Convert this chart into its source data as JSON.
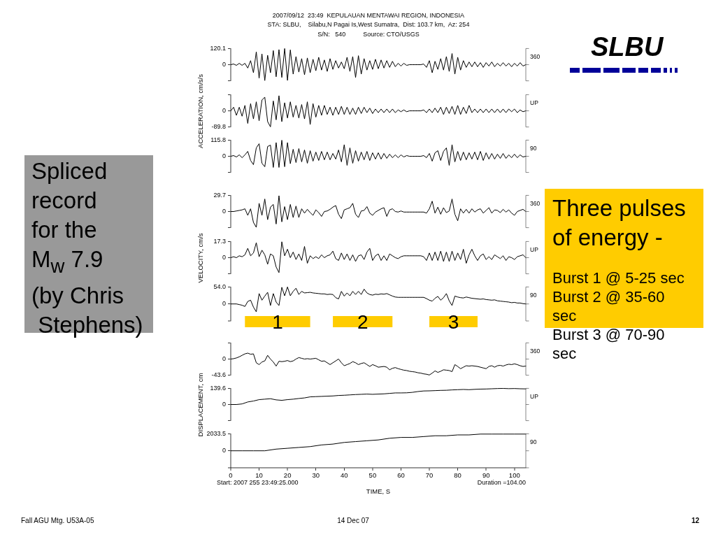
{
  "chart_data": [
    {
      "type": "line",
      "title": "2007/09/12  23:49  KEPULAUAN MENTAWAI REGION, INDONESIA",
      "subtitle": "STA: SLBU,    Silabu,N Pagai Is,West Sumatra,  Dist: 103.7 km,  Az: 254\nS/N:   540          Source: CTO/USGS",
      "x": [
        0,
        1,
        2,
        3,
        4,
        5,
        6,
        7,
        8,
        9,
        10,
        11,
        12,
        13,
        14,
        15,
        16,
        17,
        18,
        19,
        20,
        21,
        22,
        23,
        24,
        25,
        26,
        27,
        28,
        29,
        30,
        31,
        32,
        33,
        34,
        35,
        36,
        37,
        38,
        39,
        40,
        41,
        42,
        43,
        44,
        45,
        46,
        47,
        48,
        49,
        50,
        51,
        52,
        53,
        54,
        55,
        56,
        57,
        58,
        59,
        60,
        61,
        62,
        63,
        64,
        65,
        66,
        67,
        68,
        69,
        70,
        71,
        72,
        73,
        74,
        75,
        76,
        77,
        78,
        79,
        80,
        81,
        82,
        83,
        84,
        85,
        86,
        87,
        88,
        89,
        90,
        91,
        92,
        93,
        94,
        95,
        96,
        97,
        98,
        99,
        100,
        101,
        102,
        103,
        104
      ],
      "series": [
        {
          "name": "360",
          "color": "#000000",
          "values": [
            0,
            5,
            -5,
            10,
            -5,
            10,
            -25,
            30,
            -60,
            95,
            -100,
            80,
            -118,
            70,
            -60,
            105,
            -90,
            112,
            -95,
            120,
            -117,
            110,
            -70,
            60,
            -55,
            45,
            -75,
            50,
            -60,
            40,
            -45,
            55,
            -40,
            35,
            -50,
            45,
            -35,
            30,
            -25,
            20,
            -30,
            55,
            -50,
            60,
            -95,
            67,
            -70,
            45,
            -40,
            30,
            -35,
            40,
            -30,
            35,
            -25,
            30,
            -20,
            25,
            -15,
            10,
            -10,
            10,
            -5,
            0,
            0,
            0,
            0,
            0,
            5,
            -20,
            30,
            -60,
            25,
            -35,
            45,
            -40,
            60,
            -50,
            83,
            -70,
            55,
            -40,
            30,
            -20,
            20,
            -15,
            20,
            -15,
            15,
            -20,
            15,
            -10,
            20,
            -15,
            10,
            -10,
            15,
            -10,
            10,
            -15,
            10,
            -10,
            15,
            -10,
            0
          ]
        }
      ],
      "xlim": [
        0,
        104
      ],
      "ylim": [
        -120.1,
        120.1
      ],
      "yticks": [
        {
          "value": -120.1,
          "label": null
        },
        0,
        120.1
      ],
      "tick_labels": "y"
    },
    {
      "type": "line",
      "ylabel": "ACCELERATION, cm/s/s",
      "x": [
        0,
        1,
        2,
        3,
        4,
        5,
        6,
        7,
        8,
        9,
        10,
        11,
        12,
        13,
        14,
        15,
        16,
        17,
        18,
        19,
        20,
        21,
        22,
        23,
        24,
        25,
        26,
        27,
        28,
        29,
        30,
        31,
        32,
        33,
        34,
        35,
        36,
        37,
        38,
        39,
        40,
        41,
        42,
        43,
        44,
        45,
        46,
        47,
        48,
        49,
        50,
        51,
        52,
        53,
        54,
        55,
        56,
        57,
        58,
        59,
        60,
        61,
        62,
        63,
        64,
        65,
        66,
        67,
        68,
        69,
        70,
        71,
        72,
        73,
        74,
        75,
        76,
        77,
        78,
        79,
        80,
        81,
        82,
        83,
        84,
        85,
        86,
        87,
        88,
        89,
        90,
        91,
        92,
        93,
        94,
        95,
        96,
        97,
        98,
        99,
        100,
        101,
        102,
        103,
        104
      ],
      "series": [
        {
          "name": "UP",
          "color": "#000000",
          "values": [
            0,
            20,
            -25,
            20,
            -30,
            30,
            -70,
            40,
            -45,
            50,
            -55,
            60,
            76,
            -60,
            -89,
            55,
            -50,
            84,
            -60,
            45,
            -40,
            50,
            -35,
            30,
            -40,
            35,
            -45,
            50,
            -76,
            40,
            -35,
            30,
            -25,
            30,
            -20,
            20,
            -25,
            20,
            -20,
            25,
            -20,
            20,
            -20,
            15,
            -20,
            20,
            -15,
            20,
            -10,
            15,
            -15,
            10,
            -10,
            10,
            -10,
            10,
            -10,
            10,
            -10,
            5,
            -5,
            5,
            -5,
            0,
            0,
            0,
            0,
            0,
            5,
            -10,
            10,
            -10,
            15,
            -10,
            20,
            -20,
            20,
            -15,
            25,
            -20,
            30,
            -20,
            20,
            -15,
            30,
            -10,
            10,
            -10,
            10,
            -10,
            10,
            -10,
            10,
            -10,
            10,
            -10,
            10,
            -10,
            10,
            -5,
            10,
            -10,
            5,
            -5,
            0
          ]
        }
      ],
      "xlim": [
        0,
        104
      ],
      "ylim": [
        -89.8,
        89.8
      ],
      "yticks": [
        -89.8,
        0,
        {
          "value": 89.8,
          "label": null
        }
      ],
      "tick_labels": "y"
    },
    {
      "type": "line",
      "x": [
        0,
        1,
        2,
        3,
        4,
        5,
        6,
        7,
        8,
        9,
        10,
        11,
        12,
        13,
        14,
        15,
        16,
        17,
        18,
        19,
        20,
        21,
        22,
        23,
        24,
        25,
        26,
        27,
        28,
        29,
        30,
        31,
        32,
        33,
        34,
        35,
        36,
        37,
        38,
        39,
        40,
        41,
        42,
        43,
        44,
        45,
        46,
        47,
        48,
        49,
        50,
        51,
        52,
        53,
        54,
        55,
        56,
        57,
        58,
        59,
        60,
        61,
        62,
        63,
        64,
        65,
        66,
        67,
        68,
        69,
        70,
        71,
        72,
        73,
        74,
        75,
        76,
        77,
        78,
        79,
        80,
        81,
        82,
        83,
        84,
        85,
        86,
        87,
        88,
        89,
        90,
        91,
        92,
        93,
        94,
        95,
        96,
        97,
        98,
        99,
        100,
        101,
        102,
        103,
        104
      ],
      "series": [
        {
          "name": "90",
          "color": "#000000",
          "values": [
            0,
            5,
            -5,
            10,
            -10,
            10,
            35,
            -30,
            -60,
            60,
            90,
            -50,
            -75,
            70,
            80,
            -80,
            98,
            -80,
            115,
            -75,
            98,
            -53,
            50,
            -45,
            55,
            -40,
            45,
            -50,
            40,
            -35,
            30,
            -30,
            35,
            -25,
            30,
            -25,
            20,
            -20,
            45,
            -40,
            83,
            -65,
            60,
            -50,
            40,
            -35,
            30,
            -25,
            35,
            -30,
            25,
            -20,
            25,
            -20,
            20,
            -15,
            15,
            -10,
            10,
            -10,
            10,
            -5,
            5,
            0,
            0,
            0,
            0,
            0,
            5,
            -10,
            20,
            -35,
            25,
            40,
            -30,
            35,
            60,
            -65,
            83,
            -40,
            35,
            -30,
            30,
            -25,
            25,
            -20,
            30,
            -25,
            35,
            -30,
            25,
            -20,
            20,
            -20,
            15,
            -15,
            20,
            -15,
            10,
            -10,
            15,
            -10,
            10,
            -5,
            0
          ]
        }
      ],
      "xlim": [
        0,
        104
      ],
      "ylim": [
        -115.8,
        115.8
      ],
      "yticks": [
        {
          "value": -115.8,
          "label": null
        },
        0,
        115.8
      ],
      "tick_labels": "y"
    },
    {
      "type": "line",
      "x": [
        0,
        1,
        2,
        3,
        4,
        5,
        6,
        7,
        8,
        9,
        10,
        11,
        12,
        13,
        14,
        15,
        16,
        17,
        18,
        19,
        20,
        21,
        22,
        23,
        24,
        25,
        26,
        27,
        28,
        29,
        30,
        31,
        32,
        33,
        34,
        35,
        36,
        37,
        38,
        39,
        40,
        41,
        42,
        43,
        44,
        45,
        46,
        47,
        48,
        49,
        50,
        51,
        52,
        53,
        54,
        55,
        56,
        57,
        58,
        59,
        60,
        61,
        62,
        63,
        64,
        65,
        66,
        67,
        68,
        69,
        70,
        71,
        72,
        73,
        74,
        75,
        76,
        77,
        78,
        79,
        80,
        81,
        82,
        83,
        84,
        85,
        86,
        87,
        88,
        89,
        90,
        91,
        92,
        93,
        94,
        95,
        96,
        97,
        98,
        99,
        100,
        101,
        102,
        103,
        104
      ],
      "series": [
        {
          "name": "360",
          "color": "#000000",
          "values": [
            0,
            0,
            1,
            2,
            3,
            5,
            -7,
            5,
            -20,
            -29,
            15,
            -7,
            23,
            -15,
            8,
            13,
            -23,
            29,
            -19,
            9,
            -15,
            13,
            -11,
            10,
            -11,
            5,
            -3,
            4,
            -2,
            -7,
            3,
            -2,
            -9,
            0,
            1,
            4,
            8,
            11,
            -5,
            -13,
            3,
            5,
            7,
            15,
            -5,
            -11,
            1,
            2,
            9,
            -3,
            -7,
            -1,
            2,
            5,
            7,
            -9,
            3,
            5,
            0,
            -1,
            1,
            -1,
            -1,
            -1,
            -1,
            -1,
            -1,
            -1,
            -1,
            -3,
            5,
            19,
            -3,
            8,
            -5,
            7,
            -2,
            1,
            23,
            -5,
            -17,
            5,
            -3,
            4,
            -3,
            5,
            -1,
            3,
            5,
            -3,
            2,
            7,
            -3,
            3,
            2,
            -2,
            4,
            -1,
            3,
            -3,
            -7,
            0,
            2,
            4,
            0
          ]
        }
      ],
      "xlim": [
        0,
        104
      ],
      "ylim": [
        -29.7,
        29.7
      ],
      "yticks": [
        {
          "value": -29.7,
          "label": null
        },
        0,
        29.7
      ],
      "tick_labels": "y"
    },
    {
      "type": "line",
      "ylabel": "VELOCITY, cm/s",
      "x": [
        0,
        1,
        2,
        3,
        4,
        5,
        6,
        7,
        8,
        9,
        10,
        11,
        12,
        13,
        14,
        15,
        16,
        17,
        18,
        19,
        20,
        21,
        22,
        23,
        24,
        25,
        26,
        27,
        28,
        29,
        30,
        31,
        32,
        33,
        34,
        35,
        36,
        37,
        38,
        39,
        40,
        41,
        42,
        43,
        44,
        45,
        46,
        47,
        48,
        49,
        50,
        51,
        52,
        53,
        54,
        55,
        56,
        57,
        58,
        59,
        60,
        61,
        62,
        63,
        64,
        65,
        66,
        67,
        68,
        69,
        70,
        71,
        72,
        73,
        74,
        75,
        76,
        77,
        78,
        79,
        80,
        81,
        82,
        83,
        84,
        85,
        86,
        87,
        88,
        89,
        90,
        91,
        92,
        93,
        94,
        95,
        96,
        97,
        98,
        99,
        100,
        101,
        102,
        103,
        104
      ],
      "series": [
        {
          "name": "UP",
          "color": "#000000",
          "values": [
            0,
            1,
            0,
            2,
            1,
            3,
            10,
            2,
            5,
            16,
            1,
            8,
            3,
            -7,
            4,
            2,
            -10,
            -16,
            17,
            2,
            9,
            0,
            6,
            -2,
            4,
            -3,
            12,
            -6,
            2,
            -1,
            1,
            -1,
            3,
            0,
            2,
            3,
            7,
            -1,
            -3,
            5,
            -2,
            4,
            -3,
            3,
            -4,
            2,
            3,
            -2,
            6,
            10,
            -3,
            2,
            4,
            -3,
            2,
            -3,
            4,
            2,
            0,
            -1,
            1,
            2,
            2,
            2,
            2,
            2,
            2,
            2,
            1,
            -3,
            5,
            -3,
            6,
            -3,
            7,
            -4,
            6,
            -4,
            7,
            -3,
            5,
            -2,
            9,
            -6,
            3,
            9,
            2,
            -3,
            2,
            4,
            -2,
            1,
            -2,
            3,
            1,
            -1,
            2,
            -3,
            1,
            0,
            -2,
            1,
            2,
            3,
            0
          ]
        }
      ],
      "xlim": [
        0,
        104
      ],
      "ylim": [
        -17.3,
        17.3
      ],
      "yticks": [
        {
          "value": -17.3,
          "label": null
        },
        0,
        17.3
      ],
      "tick_labels": "y"
    },
    {
      "type": "line",
      "x": [
        0,
        1,
        2,
        3,
        4,
        5,
        6,
        7,
        8,
        9,
        10,
        11,
        12,
        13,
        14,
        15,
        16,
        17,
        18,
        19,
        20,
        21,
        22,
        23,
        24,
        25,
        26,
        27,
        28,
        29,
        30,
        31,
        32,
        33,
        34,
        35,
        36,
        37,
        38,
        39,
        40,
        41,
        42,
        43,
        44,
        45,
        46,
        47,
        48,
        49,
        50,
        51,
        52,
        53,
        54,
        55,
        56,
        57,
        58,
        59,
        60,
        61,
        62,
        63,
        64,
        65,
        66,
        67,
        68,
        69,
        70,
        71,
        72,
        73,
        74,
        75,
        76,
        77,
        78,
        79,
        80,
        81,
        82,
        83,
        84,
        85,
        86,
        87,
        88,
        89,
        90,
        91,
        92,
        93,
        94,
        95,
        96,
        97,
        98,
        99,
        100,
        101,
        102,
        103,
        104
      ],
      "series": [
        {
          "name": "90",
          "color": "#000000",
          "values": [
            0,
            0,
            0,
            -2,
            -4,
            -8,
            8,
            12,
            -10,
            -25,
            33,
            12,
            25,
            37,
            -5,
            33,
            6,
            -5,
            53,
            26,
            54,
            26,
            40,
            50,
            30,
            40,
            35,
            36,
            37,
            35,
            34,
            33,
            32,
            32,
            30,
            31,
            30,
            20,
            16,
            40,
            25,
            35,
            26,
            40,
            30,
            40,
            30,
            47,
            35,
            30,
            28,
            31,
            30,
            32,
            31,
            33,
            29,
            25,
            22,
            21,
            21,
            21,
            21,
            21,
            21,
            21,
            21,
            21,
            21,
            17,
            12,
            9,
            18,
            24,
            12,
            20,
            33,
            10,
            -5,
            25,
            22,
            20,
            19,
            22,
            20,
            18,
            17,
            16,
            15,
            16,
            14,
            13,
            12,
            13,
            10,
            9,
            8,
            7,
            6,
            4,
            5,
            3,
            3,
            1,
            0
          ]
        }
      ],
      "xlim": [
        0,
        104
      ],
      "ylim": [
        -54,
        54
      ],
      "yticks": [
        {
          "value": -54,
          "label": null
        },
        0,
        {
          "value": 54,
          "label": "54.0"
        }
      ],
      "tick_labels": "y",
      "bands": [
        {
          "axis": "x",
          "from": 5,
          "to": 28,
          "label": "1",
          "color": "#ffcc00"
        },
        {
          "axis": "x",
          "from": 36,
          "to": 57,
          "label": "2",
          "color": "#ffcc00"
        },
        {
          "axis": "x",
          "from": 70,
          "to": 87,
          "label": "3",
          "color": "#ffcc00"
        }
      ]
    },
    {
      "type": "line",
      "x": [
        0,
        1,
        2,
        3,
        4,
        5,
        6,
        7,
        8,
        9,
        10,
        11,
        12,
        13,
        14,
        15,
        16,
        17,
        18,
        19,
        20,
        21,
        22,
        23,
        24,
        25,
        26,
        27,
        28,
        29,
        30,
        31,
        32,
        33,
        34,
        35,
        36,
        37,
        38,
        39,
        40,
        41,
        42,
        43,
        44,
        45,
        46,
        47,
        48,
        49,
        50,
        51,
        52,
        53,
        54,
        55,
        56,
        57,
        58,
        59,
        60,
        61,
        62,
        63,
        64,
        65,
        66,
        67,
        68,
        69,
        70,
        71,
        72,
        73,
        74,
        75,
        76,
        77,
        78,
        79,
        80,
        81,
        82,
        83,
        84,
        85,
        86,
        87,
        88,
        89,
        90,
        91,
        92,
        93,
        94,
        95,
        96,
        97,
        98,
        99,
        100,
        101,
        102,
        103,
        104
      ],
      "series": [
        {
          "name": "360",
          "color": "#000000",
          "values": [
            0,
            1,
            3,
            6,
            10,
            14,
            16,
            13,
            14,
            -10,
            -15,
            -8,
            -5,
            10,
            0,
            -8,
            -19,
            -6,
            -7,
            -6,
            -4,
            -7,
            -5,
            0,
            4,
            2,
            0,
            1,
            0,
            1,
            2,
            -2,
            -6,
            -5,
            -10,
            -15,
            -10,
            -5,
            0,
            -10,
            -18,
            -15,
            -12,
            -7,
            -10,
            -15,
            -12,
            -10,
            -15,
            -20,
            -15,
            -18,
            -22,
            -21,
            -20,
            -22,
            -29,
            -25,
            -23,
            -26,
            -28,
            -30,
            -31,
            -33,
            -34,
            -35,
            -37,
            -38,
            -40,
            -41,
            -43,
            -38,
            -32,
            -36,
            -33,
            -29,
            -30,
            -31,
            -34,
            -15,
            -20,
            -26,
            -22,
            -18,
            -19,
            -18,
            -19,
            -20,
            -22,
            -24,
            -26,
            -20,
            -18,
            -22,
            -18,
            -17,
            -19,
            -16,
            -14,
            -15,
            -13,
            -15,
            -18,
            -20,
            -19
          ]
        }
      ],
      "xlim": [
        0,
        104
      ],
      "ylim": [
        -43.6,
        43.6
      ],
      "yticks": [
        -43.6,
        0,
        {
          "value": 43.6,
          "label": null
        }
      ],
      "tick_labels": "y"
    },
    {
      "type": "line",
      "ylabel": "DISPLACEMENT, cm",
      "x": [
        0,
        2,
        4,
        6,
        8,
        10,
        12,
        14,
        16,
        18,
        20,
        22,
        24,
        26,
        28,
        30,
        32,
        34,
        36,
        38,
        40,
        42,
        44,
        46,
        48,
        50,
        52,
        54,
        56,
        58,
        60,
        62,
        64,
        66,
        68,
        70,
        72,
        74,
        76,
        78,
        80,
        82,
        84,
        86,
        88,
        90,
        92,
        94,
        96,
        98,
        100,
        102,
        104
      ],
      "series": [
        {
          "name": "UP",
          "color": "#000000",
          "values": [
            0,
            0,
            5,
            22,
            30,
            42,
            46,
            50,
            40,
            36,
            42,
            46,
            52,
            57,
            66,
            68,
            70,
            72,
            74,
            78,
            80,
            83,
            86,
            88,
            90,
            88,
            90,
            92,
            96,
            100,
            100,
            101,
            105,
            112,
            117,
            118,
            120,
            122,
            123,
            126,
            128,
            130,
            128,
            131,
            133,
            134,
            136,
            138,
            139,
            137,
            138,
            136,
            135
          ]
        }
      ],
      "xlim": [
        0,
        104
      ],
      "ylim": [
        -139.6,
        139.6
      ],
      "yticks": [
        {
          "value": -139.6,
          "label": null
        },
        0,
        139.6
      ],
      "tick_labels": "y"
    },
    {
      "type": "line",
      "xlabel": "TIME, S",
      "x": [
        0,
        4,
        8,
        12,
        16,
        20,
        24,
        28,
        32,
        36,
        40,
        44,
        48,
        52,
        56,
        60,
        64,
        68,
        72,
        76,
        80,
        84,
        88,
        92,
        96,
        100,
        104
      ],
      "series": [
        {
          "name": "90",
          "color": "#000000",
          "values": [
            0,
            0,
            0,
            0,
            200,
            300,
            400,
            500,
            700,
            800,
            1000,
            1100,
            1200,
            1300,
            1500,
            1600,
            1600,
            1700,
            1800,
            1800,
            1900,
            1900,
            2000,
            2000,
            2000,
            2000,
            2000
          ]
        }
      ],
      "xlim": [
        0,
        104
      ],
      "xticks": [
        0,
        10,
        20,
        30,
        40,
        50,
        60,
        70,
        80,
        90,
        100
      ],
      "ylim": [
        -2033.5,
        2033.5
      ],
      "yticks": [
        {
          "value": -2033.5,
          "label": null
        },
        0,
        2033.5
      ],
      "annotations": [
        "Start: 2007 255 23:49:25.000",
        "Duration =104.00"
      ]
    },
    {
      "type": "other",
      "title": "SLBU",
      "annotations": [
        "Spliced\nrecord\nfor the\nM$_{w}$ 7.9\n(by Chris\n Stephens)",
        "Three pulses of energy -",
        "Burst 1 @ 5-25 sec",
        "Burst 2 @ 35-60 sec",
        "Burst 3 @ 70-90 sec",
        "Fall AGU Mtg. U53A-05",
        "14 Dec 07",
        "12"
      ]
    }
  ]
}
